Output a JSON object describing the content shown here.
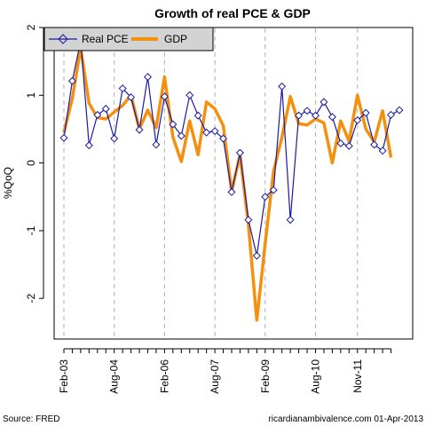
{
  "chart_data": {
    "type": "line",
    "title": "Growth of real PCE & GDP",
    "ylabel": "%QoQ",
    "xlabel": "",
    "ylim": [
      -2.6,
      2.0
    ],
    "yticks": [
      -2,
      -1,
      0,
      1,
      2
    ],
    "x_tick_labels": [
      {
        "label": "Feb-03",
        "x": "2003-02"
      },
      {
        "label": "Aug-04",
        "x": "2004-08"
      },
      {
        "label": "Feb-06",
        "x": "2006-02"
      },
      {
        "label": "Aug-07",
        "x": "2007-08"
      },
      {
        "label": "Feb-09",
        "x": "2009-02"
      },
      {
        "label": "Aug-10",
        "x": "2010-08"
      },
      {
        "label": "Nov-11",
        "x": "2011-11"
      }
    ],
    "grid": "vertical dashed at tick dates",
    "legend_position": "top-left",
    "series": [
      {
        "name": "Real PCE",
        "color": "#1a1aa6",
        "marker": "diamond",
        "x": [
          "2003-02",
          "2003-05",
          "2003-08",
          "2003-11",
          "2004-02",
          "2004-05",
          "2004-08",
          "2004-11",
          "2005-02",
          "2005-05",
          "2005-08",
          "2005-11",
          "2006-02",
          "2006-05",
          "2006-08",
          "2006-11",
          "2007-02",
          "2007-05",
          "2007-08",
          "2007-11",
          "2008-02",
          "2008-05",
          "2008-08",
          "2008-11",
          "2009-02",
          "2009-05",
          "2009-08",
          "2009-11",
          "2010-02",
          "2010-05",
          "2010-08",
          "2010-11",
          "2011-02",
          "2011-05",
          "2011-08",
          "2011-11",
          "2012-02",
          "2012-05",
          "2012-08",
          "2012-11",
          "2013-02"
        ],
        "values": [
          0.37,
          1.21,
          1.8,
          0.26,
          0.71,
          0.8,
          0.36,
          1.1,
          0.97,
          0.49,
          1.27,
          0.27,
          0.98,
          0.57,
          0.4,
          1.0,
          0.7,
          0.45,
          0.47,
          0.36,
          -0.43,
          0.15,
          -0.84,
          -1.37,
          -0.5,
          -0.4,
          1.13,
          -0.84,
          0.7,
          0.77,
          0.7,
          0.9,
          0.68,
          0.29,
          0.25,
          0.63,
          0.74,
          0.27,
          0.18,
          0.71,
          0.78
        ]
      },
      {
        "name": "GDP",
        "color": "#f5900f",
        "marker": "none",
        "x": [
          "2003-02",
          "2003-05",
          "2003-08",
          "2003-11",
          "2004-02",
          "2004-05",
          "2004-08",
          "2004-11",
          "2005-02",
          "2005-05",
          "2005-08",
          "2005-11",
          "2006-02",
          "2006-05",
          "2006-08",
          "2006-11",
          "2007-02",
          "2007-05",
          "2007-08",
          "2007-11",
          "2008-02",
          "2008-05",
          "2008-08",
          "2008-11",
          "2009-02",
          "2009-05",
          "2009-08",
          "2009-11",
          "2010-02",
          "2010-05",
          "2010-08",
          "2010-11",
          "2011-02",
          "2011-05",
          "2011-08",
          "2011-11",
          "2012-02",
          "2012-05",
          "2012-08",
          "2012-11"
        ],
        "values": [
          0.45,
          0.95,
          1.7,
          0.88,
          0.67,
          0.65,
          0.75,
          0.85,
          1.0,
          0.5,
          0.78,
          0.52,
          1.27,
          0.38,
          0.02,
          0.62,
          0.12,
          0.9,
          0.8,
          0.55,
          -0.42,
          0.12,
          -0.91,
          -2.32,
          -1.19,
          -0.12,
          0.38,
          0.98,
          0.58,
          0.56,
          0.65,
          0.59,
          0.0,
          0.62,
          0.32,
          1.0,
          0.5,
          0.31,
          0.77,
          0.08
        ]
      }
    ]
  },
  "footer": {
    "source": "Source: FRED",
    "credit": "ricardianambivalence.com   01-Apr-2013"
  }
}
